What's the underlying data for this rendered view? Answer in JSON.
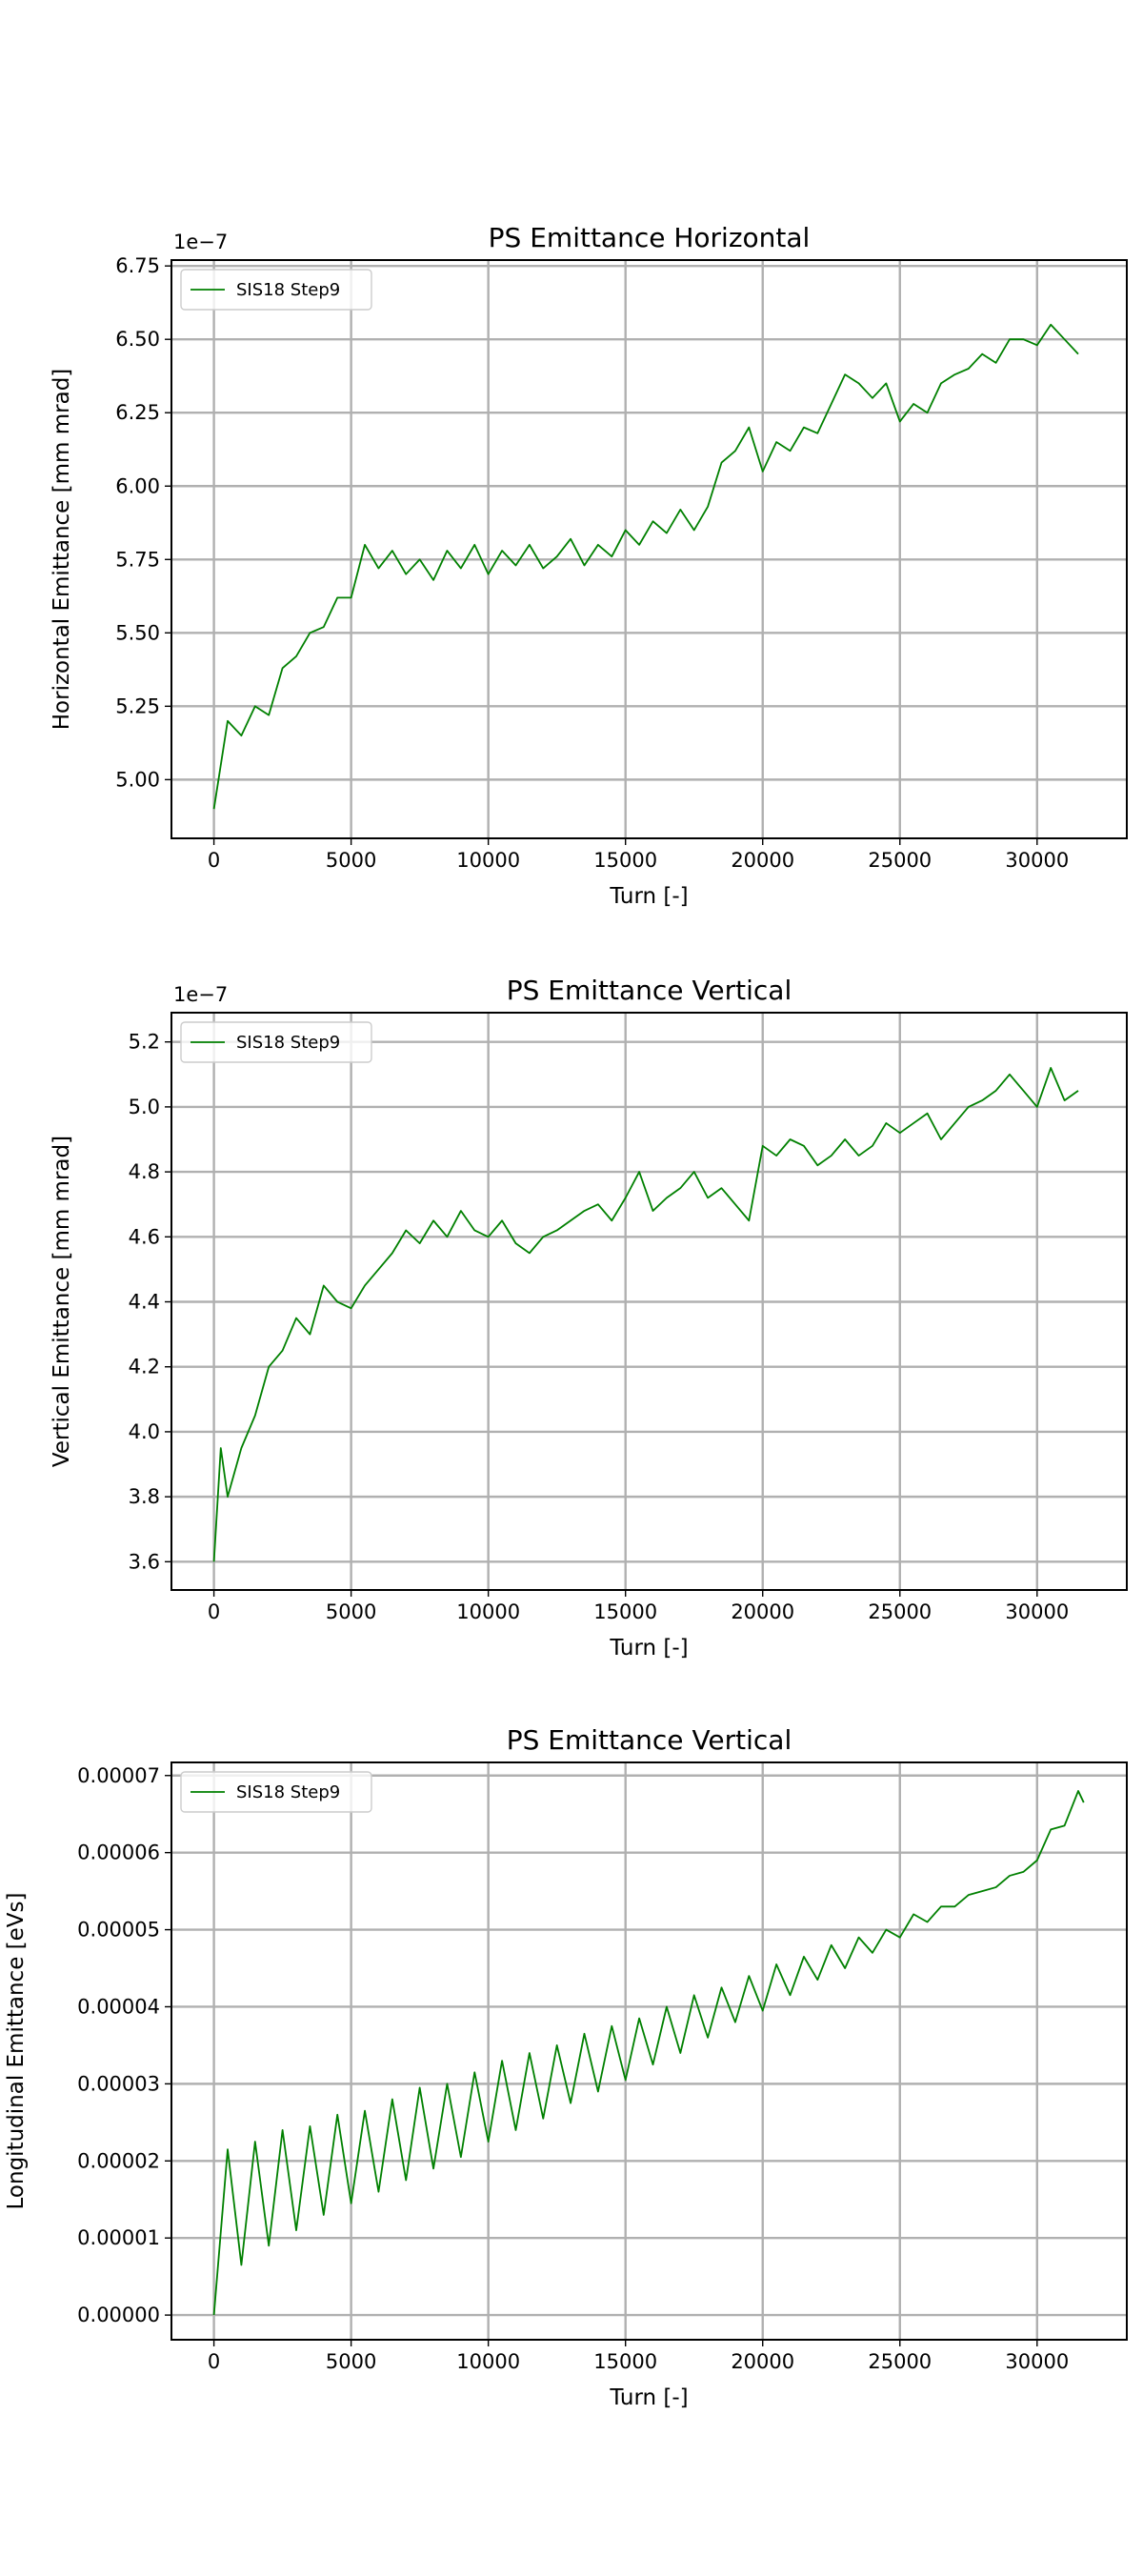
{
  "chart_data": [
    {
      "type": "line",
      "title": "PS Emittance Horizontal",
      "x_label": "Turn [-]",
      "y_label": "Horizontal Emittance [mm mrad]",
      "offset_text": "1e−7",
      "legend": "upper left",
      "grid": true,
      "xlim": [
        -1548,
        33270
      ],
      "xticks": [
        0,
        5000,
        10000,
        15000,
        20000,
        25000,
        30000
      ],
      "ylim": [
        4.8,
        6.77
      ],
      "yticks": [
        {
          "value": 5.0,
          "label": "5.00"
        },
        {
          "value": 5.25,
          "label": "5.25"
        },
        {
          "value": 5.5,
          "label": "5.50"
        },
        {
          "value": 5.75,
          "label": "5.75"
        },
        {
          "value": 6.0,
          "label": "6.00"
        },
        {
          "value": 6.25,
          "label": "6.25"
        },
        {
          "value": 6.5,
          "label": "6.50"
        },
        {
          "value": 6.75,
          "label": "6.75"
        }
      ],
      "x": [
        0,
        500,
        1000,
        1500,
        2000,
        2500,
        3000,
        3500,
        4000,
        4500,
        5000,
        5500,
        6000,
        6500,
        7000,
        7500,
        8000,
        8500,
        9000,
        9500,
        10000,
        10500,
        11000,
        11500,
        12000,
        12500,
        13000,
        13500,
        14000,
        14500,
        15000,
        15500,
        16000,
        16500,
        17000,
        17500,
        18000,
        18500,
        19000,
        19500,
        20000,
        20500,
        21000,
        21500,
        22000,
        22500,
        23000,
        23500,
        24000,
        24500,
        25000,
        25500,
        26000,
        26500,
        27000,
        27500,
        28000,
        28500,
        29000,
        29500,
        30000,
        30500,
        31000,
        31500
      ],
      "series": [
        {
          "name": "SIS18 Step9",
          "color": "#008000",
          "values": [
            4.9,
            5.2,
            5.15,
            5.25,
            5.22,
            5.38,
            5.42,
            5.5,
            5.52,
            5.62,
            5.62,
            5.8,
            5.72,
            5.78,
            5.7,
            5.75,
            5.68,
            5.78,
            5.72,
            5.8,
            5.7,
            5.78,
            5.73,
            5.8,
            5.72,
            5.76,
            5.82,
            5.73,
            5.8,
            5.76,
            5.85,
            5.8,
            5.88,
            5.84,
            5.92,
            5.85,
            5.93,
            6.08,
            6.12,
            6.2,
            6.05,
            6.15,
            6.12,
            6.2,
            6.18,
            6.28,
            6.38,
            6.35,
            6.3,
            6.35,
            6.22,
            6.28,
            6.25,
            6.35,
            6.38,
            6.4,
            6.45,
            6.42,
            6.5,
            6.5,
            6.48,
            6.55,
            6.5,
            6.45
          ]
        }
      ]
    },
    {
      "type": "line",
      "title": "PS Emittance Vertical",
      "x_label": "Turn [-]",
      "y_label": "Vertical Emittance [mm mrad]",
      "offset_text": "1e−7",
      "legend": "upper left",
      "grid": true,
      "xlim": [
        -1548,
        33270
      ],
      "xticks": [
        0,
        5000,
        10000,
        15000,
        20000,
        25000,
        30000
      ],
      "ylim": [
        3.513,
        5.29
      ],
      "yticks": [
        {
          "value": 3.6,
          "label": "3.6"
        },
        {
          "value": 3.8,
          "label": "3.8"
        },
        {
          "value": 4.0,
          "label": "4.0"
        },
        {
          "value": 4.2,
          "label": "4.2"
        },
        {
          "value": 4.4,
          "label": "4.4"
        },
        {
          "value": 4.6,
          "label": "4.6"
        },
        {
          "value": 4.8,
          "label": "4.8"
        },
        {
          "value": 5.0,
          "label": "5.0"
        },
        {
          "value": 5.2,
          "label": "5.2"
        }
      ],
      "x": [
        0,
        250,
        500,
        1000,
        1500,
        2000,
        2500,
        3000,
        3500,
        4000,
        4500,
        5000,
        5500,
        6000,
        6500,
        7000,
        7500,
        8000,
        8500,
        9000,
        9500,
        10000,
        10500,
        11000,
        11500,
        12000,
        12500,
        13000,
        13500,
        14000,
        14500,
        15000,
        15500,
        16000,
        16500,
        17000,
        17500,
        18000,
        18500,
        19000,
        19500,
        20000,
        20500,
        21000,
        21500,
        22000,
        22500,
        23000,
        23500,
        24000,
        24500,
        25000,
        25500,
        26000,
        26500,
        27000,
        27500,
        28000,
        28500,
        29000,
        29500,
        30000,
        30500,
        31000,
        31500
      ],
      "series": [
        {
          "name": "SIS18 Step9",
          "color": "#008000",
          "values": [
            3.6,
            3.95,
            3.8,
            3.95,
            4.05,
            4.2,
            4.25,
            4.35,
            4.3,
            4.45,
            4.4,
            4.38,
            4.45,
            4.5,
            4.55,
            4.62,
            4.58,
            4.65,
            4.6,
            4.68,
            4.62,
            4.6,
            4.65,
            4.58,
            4.55,
            4.6,
            4.62,
            4.65,
            4.68,
            4.7,
            4.65,
            4.72,
            4.8,
            4.68,
            4.72,
            4.75,
            4.8,
            4.72,
            4.75,
            4.7,
            4.65,
            4.88,
            4.85,
            4.9,
            4.88,
            4.82,
            4.85,
            4.9,
            4.85,
            4.88,
            4.95,
            4.92,
            4.95,
            4.98,
            4.9,
            4.95,
            5.0,
            5.02,
            5.05,
            5.1,
            5.05,
            5.0,
            5.12,
            5.02,
            5.05
          ]
        }
      ]
    },
    {
      "type": "line",
      "title": "PS Emittance Vertical",
      "x_label": "Turn [-]",
      "y_label": "Longitudinal Emittance [eVs]",
      "legend": "upper left",
      "grid": true,
      "xlim": [
        -1548,
        33270
      ],
      "xticks": [
        0,
        5000,
        10000,
        15000,
        20000,
        25000,
        30000
      ],
      "ylim": [
        -3.2e-06,
        7.17e-05
      ],
      "yticks": [
        {
          "value": 0,
          "label": "0.00000"
        },
        {
          "value": 1e-05,
          "label": "0.00001"
        },
        {
          "value": 2e-05,
          "label": "0.00002"
        },
        {
          "value": 3e-05,
          "label": "0.00003"
        },
        {
          "value": 4e-05,
          "label": "0.00004"
        },
        {
          "value": 5e-05,
          "label": "0.00005"
        },
        {
          "value": 6e-05,
          "label": "0.00006"
        },
        {
          "value": 7e-05,
          "label": "0.00007"
        }
      ],
      "x": [
        0,
        500,
        1000,
        1500,
        2000,
        2500,
        3000,
        3500,
        4000,
        4500,
        5000,
        5500,
        6000,
        6500,
        7000,
        7500,
        8000,
        8500,
        9000,
        9500,
        10000,
        10500,
        11000,
        11500,
        12000,
        12500,
        13000,
        13500,
        14000,
        14500,
        15000,
        15500,
        16000,
        16500,
        17000,
        17500,
        18000,
        18500,
        19000,
        19500,
        20000,
        20500,
        21000,
        21500,
        22000,
        22500,
        23000,
        23500,
        24000,
        24500,
        25000,
        25500,
        26000,
        26500,
        27000,
        27500,
        28000,
        28500,
        29000,
        29500,
        30000,
        30500,
        31000,
        31500,
        31700
      ],
      "series": [
        {
          "name": "SIS18 Step9",
          "color": "#008000",
          "values": [
            0,
            2.15e-05,
            6.5e-06,
            2.25e-05,
            9e-06,
            2.4e-05,
            1.1e-05,
            2.45e-05,
            1.3e-05,
            2.6e-05,
            1.45e-05,
            2.65e-05,
            1.6e-05,
            2.8e-05,
            1.75e-05,
            2.95e-05,
            1.9e-05,
            3e-05,
            2.05e-05,
            3.15e-05,
            2.25e-05,
            3.3e-05,
            2.4e-05,
            3.4e-05,
            2.55e-05,
            3.5e-05,
            2.75e-05,
            3.65e-05,
            2.9e-05,
            3.75e-05,
            3.05e-05,
            3.85e-05,
            3.25e-05,
            4e-05,
            3.4e-05,
            4.15e-05,
            3.6e-05,
            4.25e-05,
            3.8e-05,
            4.4e-05,
            3.95e-05,
            4.55e-05,
            4.15e-05,
            4.65e-05,
            4.35e-05,
            4.8e-05,
            4.5e-05,
            4.9e-05,
            4.7e-05,
            5e-05,
            4.9e-05,
            5.2e-05,
            5.1e-05,
            5.3e-05,
            5.3e-05,
            5.45e-05,
            5.5e-05,
            5.55e-05,
            5.7e-05,
            5.75e-05,
            5.9e-05,
            6.3e-05,
            6.35e-05,
            6.8e-05,
            6.65e-05
          ]
        }
      ]
    }
  ]
}
